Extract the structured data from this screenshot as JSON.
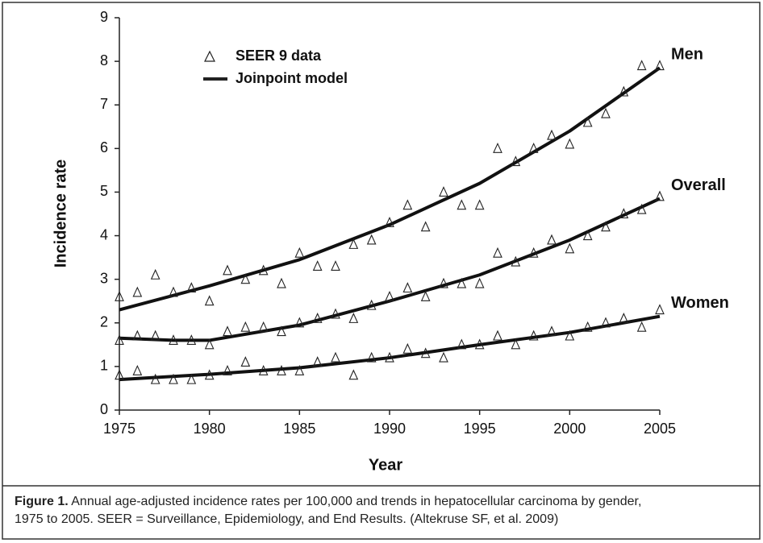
{
  "chart_data": {
    "type": "scatter-line",
    "x_label": "Year",
    "y_label": "Incidence rate",
    "xlim": [
      1975,
      2005
    ],
    "xticks": [
      1975,
      1980,
      1985,
      1990,
      1995,
      2000,
      2005
    ],
    "ylim": [
      0,
      9
    ],
    "yticks": [
      0,
      1,
      2,
      3,
      4,
      5,
      6,
      7,
      8,
      9
    ],
    "legend": {
      "data_label": "SEER 9 data",
      "model_label": "Joinpoint model"
    },
    "x": [
      1975,
      1976,
      1977,
      1978,
      1979,
      1980,
      1981,
      1982,
      1983,
      1984,
      1985,
      1986,
      1987,
      1988,
      1989,
      1990,
      1991,
      1992,
      1993,
      1994,
      1995,
      1996,
      1997,
      1998,
      1999,
      2000,
      2001,
      2002,
      2003,
      2004,
      2005
    ],
    "groups": [
      {
        "name": "Men",
        "values": [
          2.6,
          2.7,
          3.1,
          2.7,
          2.8,
          2.5,
          3.2,
          3.0,
          3.2,
          2.9,
          3.6,
          3.3,
          3.3,
          3.8,
          3.9,
          4.3,
          4.7,
          4.2,
          5.0,
          4.7,
          4.7,
          6.0,
          5.7,
          6.0,
          6.3,
          6.1,
          6.6,
          6.8,
          7.3,
          7.9,
          7.9
        ],
        "model_x": [
          1975,
          1980,
          1985,
          1990,
          1995,
          2000,
          2005
        ],
        "model_values": [
          2.3,
          2.85,
          3.45,
          4.25,
          5.2,
          6.4,
          7.85
        ]
      },
      {
        "name": "Overall",
        "values": [
          1.6,
          1.7,
          1.7,
          1.6,
          1.6,
          1.5,
          1.8,
          1.9,
          1.9,
          1.8,
          2.0,
          2.1,
          2.2,
          2.1,
          2.4,
          2.6,
          2.8,
          2.6,
          2.9,
          2.9,
          2.9,
          3.6,
          3.4,
          3.6,
          3.9,
          3.7,
          4.0,
          4.2,
          4.5,
          4.6,
          4.9
        ],
        "model_x": [
          1975,
          1978,
          1980,
          1985,
          1990,
          1995,
          2000,
          2005
        ],
        "model_values": [
          1.65,
          1.6,
          1.6,
          1.95,
          2.5,
          3.1,
          3.9,
          4.85
        ]
      },
      {
        "name": "Women",
        "values": [
          0.8,
          0.9,
          0.7,
          0.7,
          0.7,
          0.8,
          0.9,
          1.1,
          0.9,
          0.9,
          0.9,
          1.1,
          1.2,
          0.8,
          1.2,
          1.2,
          1.4,
          1.3,
          1.2,
          1.5,
          1.5,
          1.7,
          1.5,
          1.7,
          1.8,
          1.7,
          1.9,
          2.0,
          2.1,
          1.9,
          2.3
        ],
        "model_x": [
          1975,
          1980,
          1985,
          1990,
          1995,
          2000,
          2005
        ],
        "model_values": [
          0.7,
          0.82,
          0.97,
          1.2,
          1.5,
          1.78,
          2.15
        ]
      }
    ],
    "caption_label": "Figure 1.",
    "caption": "Annual age-adjusted incidence rates per 100,000 and trends in hepatocellular carcinoma by gender, 1975 to 2005. SEER = Surveillance, Epidemiology, and End Results. (Altekruse SF, et al. 2009)"
  }
}
